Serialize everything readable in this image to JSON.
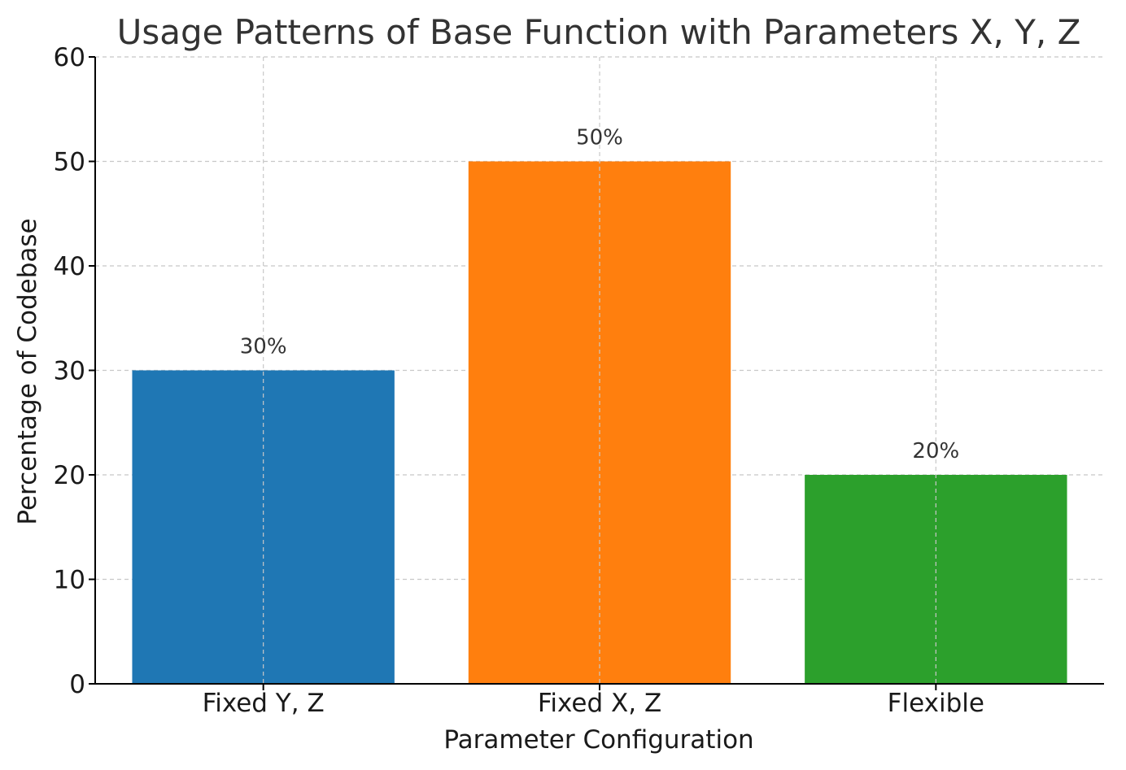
{
  "chart_data": {
    "type": "bar",
    "title": "Usage Patterns of Base Function with Parameters X, Y, Z",
    "xlabel": "Parameter Configuration",
    "ylabel": "Percentage of Codebase",
    "categories": [
      "Fixed Y, Z",
      "Fixed X, Z",
      "Flexible"
    ],
    "values": [
      30,
      50,
      20
    ],
    "data_labels": [
      "30%",
      "50%",
      "20%"
    ],
    "colors": [
      "#1f77b4",
      "#ff7f0e",
      "#2ca02c"
    ],
    "ylim": [
      0,
      60
    ],
    "yticks": [
      0,
      10,
      20,
      30,
      40,
      50,
      60
    ],
    "grid": true,
    "legend": "none"
  }
}
